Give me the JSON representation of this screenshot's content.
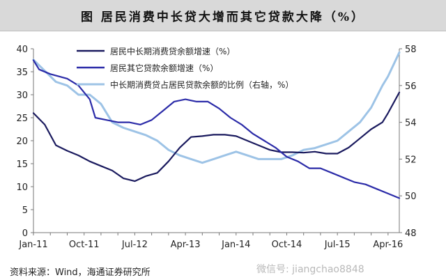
{
  "title": "图    居民消费中长贷大增而其它贷款大降（%）",
  "source": "资料来源：Wind，海通证券研究所",
  "watermark": "微信号: jiangchao8848",
  "chart_data": {
    "type": "line",
    "x_tick_labels": [
      "Jan-11",
      "Oct-11",
      "Jul-12",
      "Apr-13",
      "Jan-14",
      "Oct-14",
      "Jul-15",
      "Apr-16"
    ],
    "x_range": [
      "2011-01",
      "2016-06"
    ],
    "y_left": {
      "range": [
        0,
        40
      ],
      "ticks": [
        0,
        5,
        10,
        15,
        20,
        25,
        30,
        35,
        40
      ]
    },
    "y_right": {
      "range": [
        48,
        58
      ],
      "ticks": [
        48,
        50,
        52,
        54,
        56,
        58
      ],
      "label": "右轴"
    },
    "legend_position": "top",
    "grid": false,
    "series": [
      {
        "name": "居民中长期消费贷余额增速（%）",
        "axis": "left",
        "color": "#1a1a5e",
        "points": [
          [
            "2011-01",
            26
          ],
          [
            "2011-03",
            23.5
          ],
          [
            "2011-05",
            19
          ],
          [
            "2011-07",
            17.8
          ],
          [
            "2011-09",
            16.8
          ],
          [
            "2011-11",
            15.5
          ],
          [
            "2012-01",
            14.5
          ],
          [
            "2012-03",
            13.5
          ],
          [
            "2012-05",
            11.8
          ],
          [
            "2012-07",
            11.2
          ],
          [
            "2012-09",
            12.3
          ],
          [
            "2012-11",
            13
          ],
          [
            "2013-01",
            15.5
          ],
          [
            "2013-03",
            18.5
          ],
          [
            "2013-05",
            20.8
          ],
          [
            "2013-07",
            21
          ],
          [
            "2013-09",
            21.3
          ],
          [
            "2013-11",
            21.3
          ],
          [
            "2014-01",
            21
          ],
          [
            "2014-03",
            20
          ],
          [
            "2014-05",
            19
          ],
          [
            "2014-07",
            18
          ],
          [
            "2014-09",
            17.5
          ],
          [
            "2014-11",
            17.5
          ],
          [
            "2015-01",
            17.4
          ],
          [
            "2015-03",
            17.6
          ],
          [
            "2015-05",
            17.2
          ],
          [
            "2015-07",
            17.2
          ],
          [
            "2015-09",
            18.5
          ],
          [
            "2015-11",
            20.5
          ],
          [
            "2016-01",
            22.5
          ],
          [
            "2016-03",
            24
          ],
          [
            "2016-04",
            26
          ],
          [
            "2016-06",
            30.5
          ]
        ]
      },
      {
        "name": "居民其它贷款余额增速（%）",
        "axis": "left",
        "color": "#2b2ba8",
        "points": [
          [
            "2011-01",
            37.5
          ],
          [
            "2011-02",
            35.5
          ],
          [
            "2011-04",
            34.5
          ],
          [
            "2011-07",
            33.5
          ],
          [
            "2011-09",
            32
          ],
          [
            "2011-11",
            29
          ],
          [
            "2011-12",
            25
          ],
          [
            "2012-02",
            24.5
          ],
          [
            "2012-04",
            24
          ],
          [
            "2012-06",
            24
          ],
          [
            "2012-08",
            23.5
          ],
          [
            "2012-10",
            24.5
          ],
          [
            "2012-12",
            26.5
          ],
          [
            "2013-02",
            28.5
          ],
          [
            "2013-04",
            29
          ],
          [
            "2013-06",
            28.5
          ],
          [
            "2013-08",
            28.5
          ],
          [
            "2013-10",
            27
          ],
          [
            "2013-12",
            25
          ],
          [
            "2014-02",
            23.5
          ],
          [
            "2014-04",
            21.5
          ],
          [
            "2014-06",
            20
          ],
          [
            "2014-08",
            18.5
          ],
          [
            "2014-10",
            16.5
          ],
          [
            "2014-12",
            15.5
          ],
          [
            "2015-02",
            14
          ],
          [
            "2015-04",
            14
          ],
          [
            "2015-06",
            13
          ],
          [
            "2015-08",
            12
          ],
          [
            "2015-10",
            11
          ],
          [
            "2015-12",
            10.5
          ],
          [
            "2016-02",
            9.5
          ],
          [
            "2016-04",
            8.5
          ],
          [
            "2016-06",
            7.5
          ]
        ]
      },
      {
        "name": "中长期消费贷占居民贷款余额的比例（右轴，%）",
        "axis": "right",
        "color": "#9dc3e6",
        "points": [
          [
            "2011-01",
            57.4
          ],
          [
            "2011-03",
            56.8
          ],
          [
            "2011-05",
            56.2
          ],
          [
            "2011-07",
            56
          ],
          [
            "2011-09",
            55.5
          ],
          [
            "2011-11",
            55.5
          ],
          [
            "2012-01",
            55
          ],
          [
            "2012-03",
            54
          ],
          [
            "2012-05",
            53.7
          ],
          [
            "2012-07",
            53.5
          ],
          [
            "2012-09",
            53.3
          ],
          [
            "2012-11",
            53
          ],
          [
            "2013-01",
            52.5
          ],
          [
            "2013-03",
            52.2
          ],
          [
            "2013-05",
            52
          ],
          [
            "2013-07",
            51.8
          ],
          [
            "2013-09",
            52
          ],
          [
            "2013-11",
            52.2
          ],
          [
            "2014-01",
            52.4
          ],
          [
            "2014-03",
            52.2
          ],
          [
            "2014-05",
            52
          ],
          [
            "2014-07",
            52
          ],
          [
            "2014-09",
            52
          ],
          [
            "2014-11",
            52.2
          ],
          [
            "2015-01",
            52.5
          ],
          [
            "2015-03",
            52.6
          ],
          [
            "2015-05",
            52.8
          ],
          [
            "2015-07",
            53
          ],
          [
            "2015-09",
            53.5
          ],
          [
            "2015-11",
            54
          ],
          [
            "2016-01",
            54.8
          ],
          [
            "2016-03",
            56
          ],
          [
            "2016-04",
            56.5
          ],
          [
            "2016-06",
            57.8
          ]
        ]
      }
    ]
  }
}
